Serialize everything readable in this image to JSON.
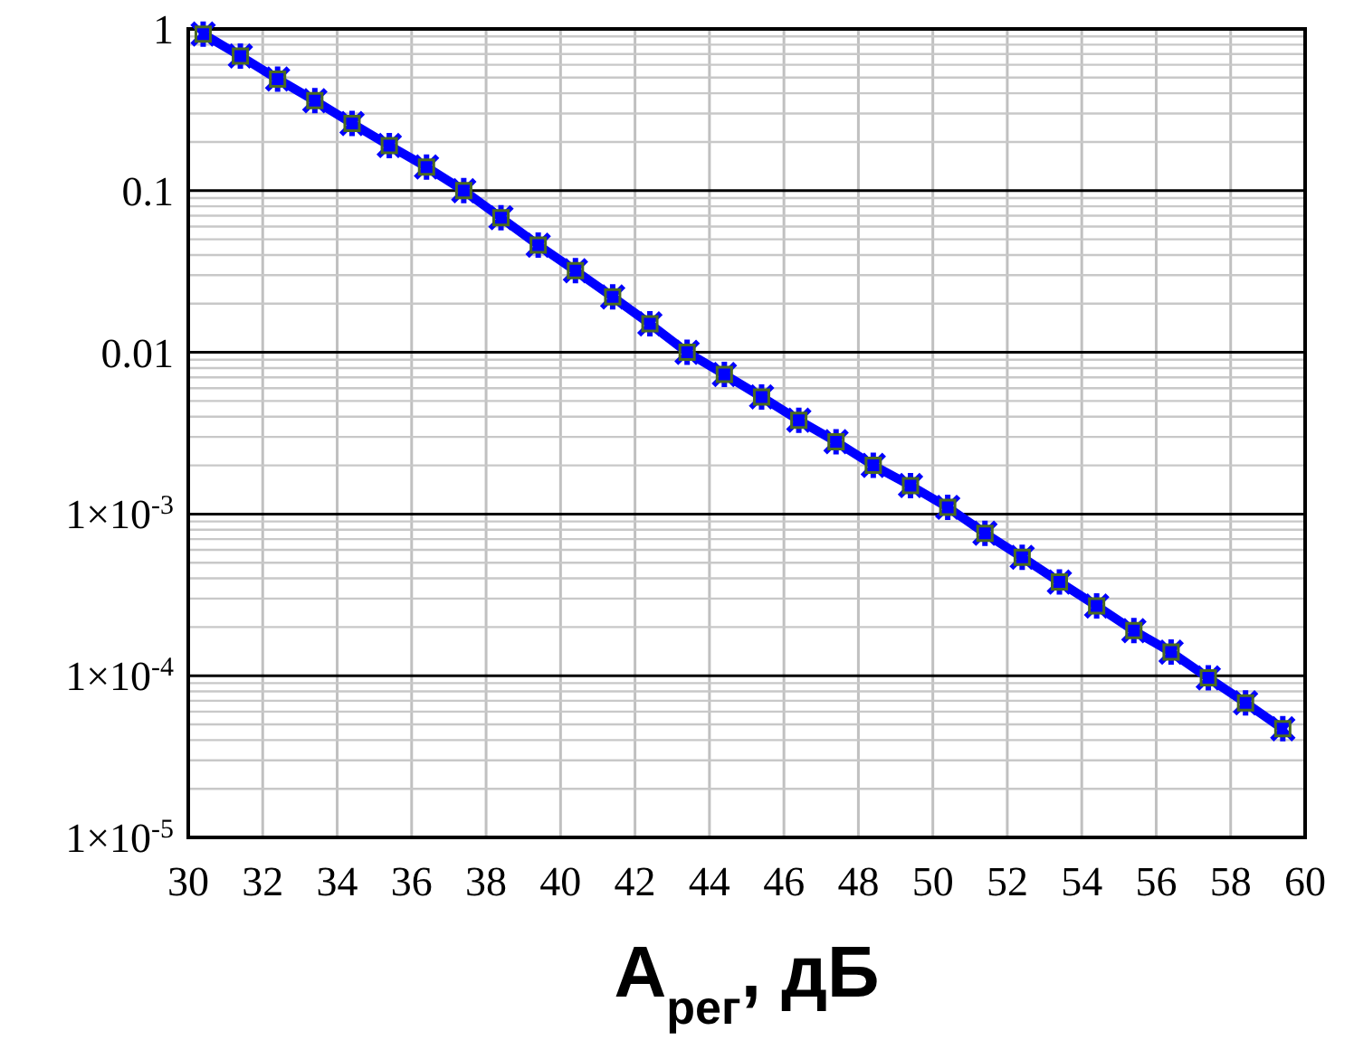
{
  "chart_data": {
    "type": "line",
    "xlabel": "А$_{рег}$, дБ",
    "x": [
      30.4,
      31.4,
      32.4,
      33.4,
      34.4,
      35.4,
      36.4,
      37.4,
      38.4,
      39.4,
      40.4,
      41.4,
      42.4,
      43.4,
      44.4,
      45.4,
      46.4,
      47.4,
      48.4,
      49.4,
      50.4,
      51.4,
      52.4,
      53.4,
      54.4,
      55.4,
      56.4,
      57.4,
      58.4,
      59.4
    ],
    "series": [
      {
        "color": "#0000ff",
        "marker": "cross",
        "values": [
          0.93,
          0.68,
          0.49,
          0.36,
          0.26,
          0.19,
          0.14,
          0.1,
          0.068,
          0.046,
          0.032,
          0.022,
          0.015,
          0.01,
          0.0073,
          0.0053,
          0.0038,
          0.0028,
          0.002,
          0.0015,
          0.0011,
          0.00076,
          0.00054,
          0.00038,
          0.00027,
          0.00019,
          0.00014,
          9.7e-05,
          6.8e-05,
          4.7e-05
        ]
      },
      {
        "type": "scatter",
        "color": "#4b6b1f",
        "marker": "square",
        "values": [
          0.93,
          0.68,
          0.49,
          0.36,
          0.26,
          0.19,
          0.14,
          0.1,
          0.068,
          0.046,
          0.032,
          0.022,
          0.015,
          0.01,
          0.0073,
          0.0053,
          0.0038,
          0.0028,
          0.002,
          0.0015,
          0.0011,
          0.00076,
          0.00054,
          0.00038,
          0.00027,
          0.00019,
          0.00014,
          9.7e-05,
          6.8e-05,
          4.7e-05
        ]
      }
    ],
    "log": "y",
    "grid": true,
    "xlim": [
      30,
      60
    ],
    "xticks": [
      30,
      32,
      34,
      36,
      38,
      40,
      42,
      44,
      46,
      48,
      50,
      52,
      54,
      56,
      58,
      60
    ],
    "ylim": [
      1e-05,
      1
    ],
    "yticks": [
      {
        "value": 1,
        "label": "1"
      },
      {
        "value": 0.1,
        "label": "0.1"
      },
      {
        "value": 0.01,
        "label": "0.01"
      },
      {
        "value": 0.001,
        "label": "1×10$^{-3}$"
      },
      {
        "value": 0.0001,
        "label": "1×10$^{-4}$"
      },
      {
        "value": 1e-05,
        "label": "1×10$^{-5}$"
      }
    ]
  }
}
